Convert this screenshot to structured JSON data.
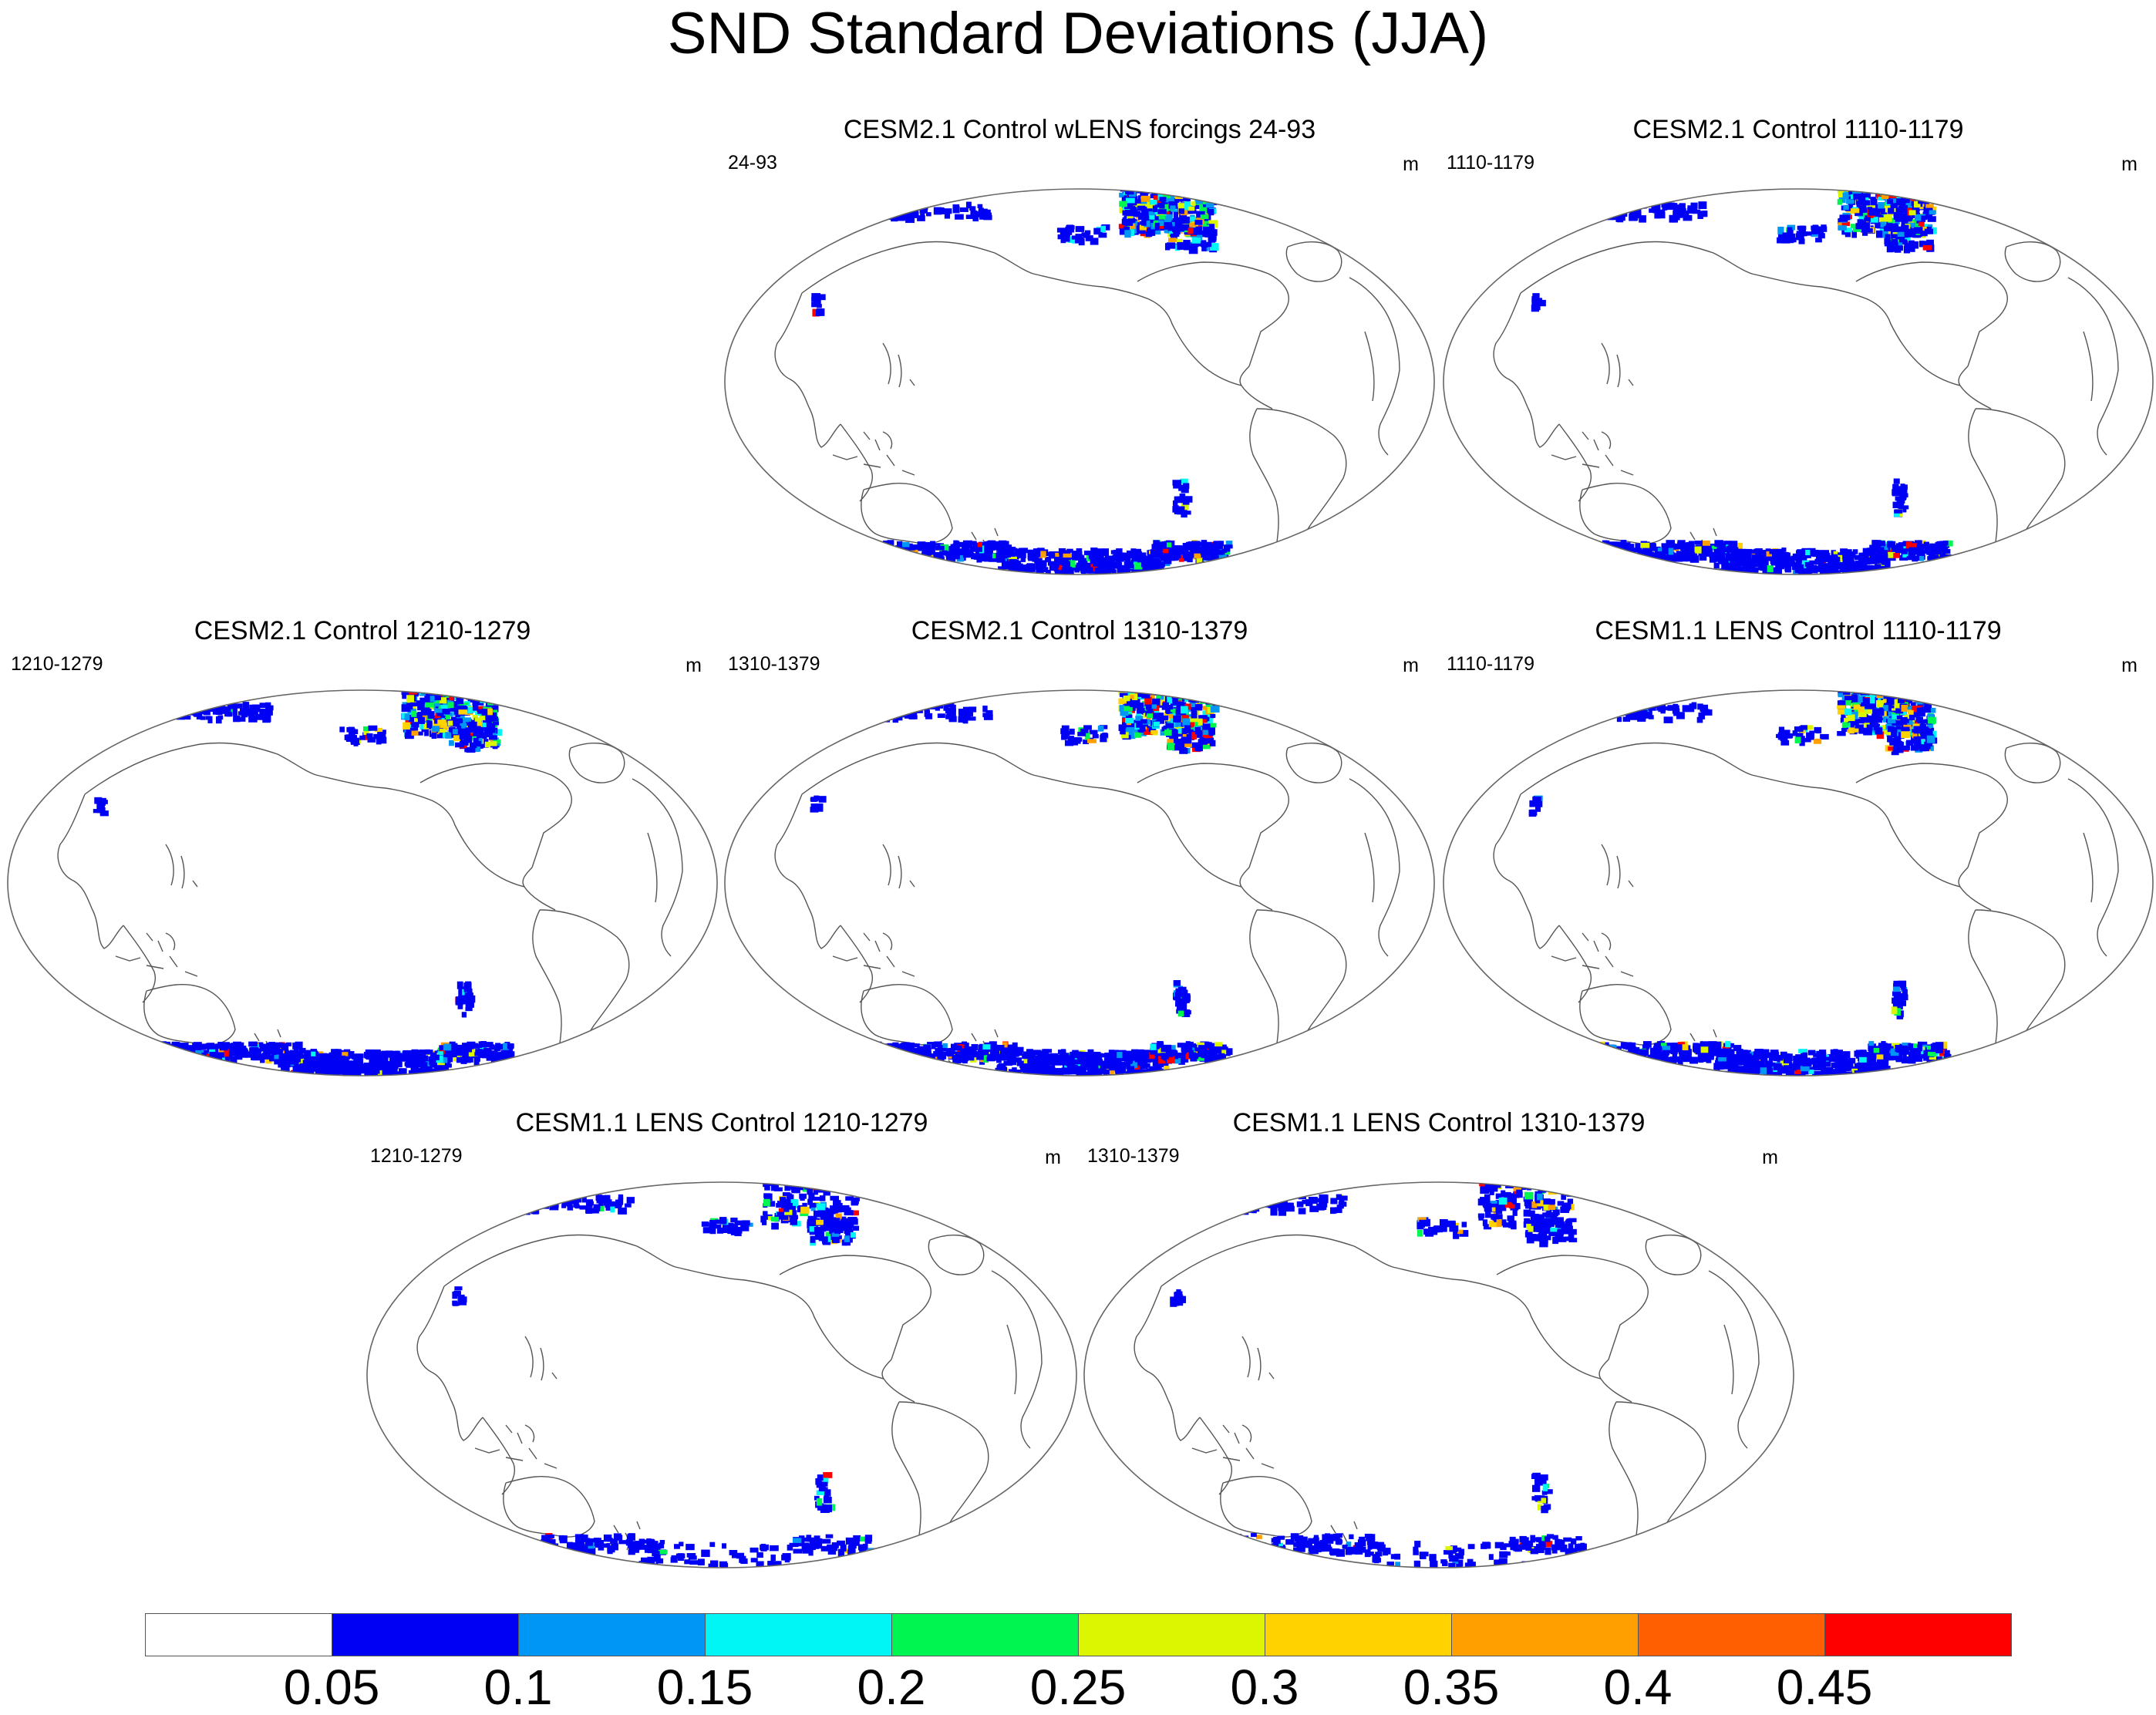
{
  "title": "SND Standard Deviations (JJA)",
  "panels": [
    {
      "title": "CESM2.1 Control wLENS forcings 24-93",
      "left_label": "24-93",
      "right_label": "m"
    },
    {
      "title": "CESM2.1 Control 1110-1179",
      "left_label": "1110-1179",
      "right_label": "m"
    },
    {
      "title": "CESM2.1 Control 1210-1279",
      "left_label": "1210-1279",
      "right_label": "m"
    },
    {
      "title": "CESM2.1 Control 1310-1379",
      "left_label": "1310-1379",
      "right_label": "m"
    },
    {
      "title": "CESM1.1 LENS Control 1110-1179",
      "left_label": "1110-1179",
      "right_label": "m"
    },
    {
      "title": "CESM1.1 LENS Control 1210-1279",
      "left_label": "1210-1279",
      "right_label": "m"
    },
    {
      "title": "CESM1.1 LENS Control 1310-1379",
      "left_label": "1310-1379",
      "right_label": "m"
    }
  ],
  "colorbar": {
    "colors": [
      "#ffffff",
      "#0000f5",
      "#0096f5",
      "#00f5f5",
      "#00f550",
      "#dcf500",
      "#ffd200",
      "#ffa000",
      "#ff5f00",
      "#ff0000"
    ],
    "labels": [
      "0.05",
      "0.1",
      "0.15",
      "0.2",
      "0.25",
      "0.3",
      "0.35",
      "0.4",
      "0.45"
    ]
  }
}
